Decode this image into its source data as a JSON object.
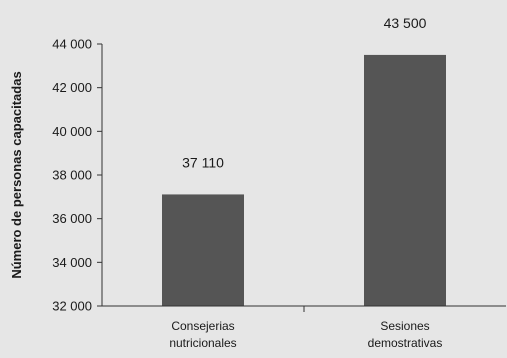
{
  "chart_data": {
    "type": "bar",
    "categories": [
      [
        "Consejerias",
        "nutricionales"
      ],
      [
        "Sesiones",
        "demostrativas"
      ]
    ],
    "values": [
      37110,
      43500
    ],
    "data_labels": [
      "37 110",
      "43 500"
    ],
    "ylabel": "Número de personas capacitadas",
    "xlabel": "",
    "ylim": [
      32000,
      44000
    ],
    "yticks": [
      32000,
      34000,
      36000,
      38000,
      40000,
      42000,
      44000
    ],
    "ytick_labels": [
      "32 000",
      "34 000",
      "36 000",
      "38 000",
      "40 000",
      "42 000",
      "44 000"
    ],
    "grid": false,
    "legend": "none",
    "colors": {
      "bar": "#555555",
      "axis": "#333333",
      "background": "#e6e6e6"
    }
  }
}
